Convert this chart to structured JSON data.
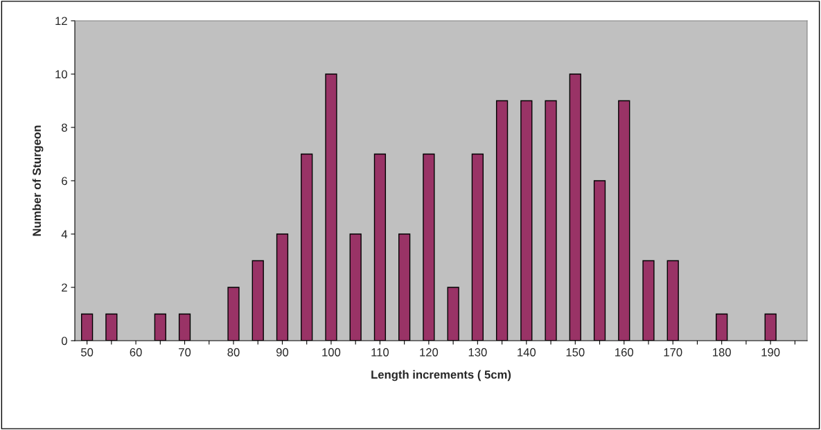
{
  "chart_data": {
    "type": "bar",
    "xlabel": "Length increments ( 5cm)",
    "ylabel": "Number of Sturgeon",
    "categories": [
      "50",
      null,
      "60",
      null,
      "70",
      null,
      "80",
      null,
      "90",
      null,
      "100",
      null,
      "110",
      null,
      "120",
      null,
      "130",
      null,
      "140",
      null,
      "150",
      null,
      "160",
      null,
      "170",
      null,
      "180",
      null,
      "190",
      null
    ],
    "values": [
      1,
      1,
      null,
      1,
      1,
      null,
      2,
      3,
      4,
      7,
      10,
      4,
      7,
      4,
      7,
      2,
      7,
      9,
      9,
      9,
      10,
      6,
      9,
      3,
      3,
      null,
      1,
      null,
      1,
      null
    ],
    "color": "#993366",
    "ylim": [
      0,
      12
    ],
    "yticks": [
      0,
      2,
      4,
      6,
      8,
      10,
      12
    ],
    "grid": false,
    "legend": false
  }
}
